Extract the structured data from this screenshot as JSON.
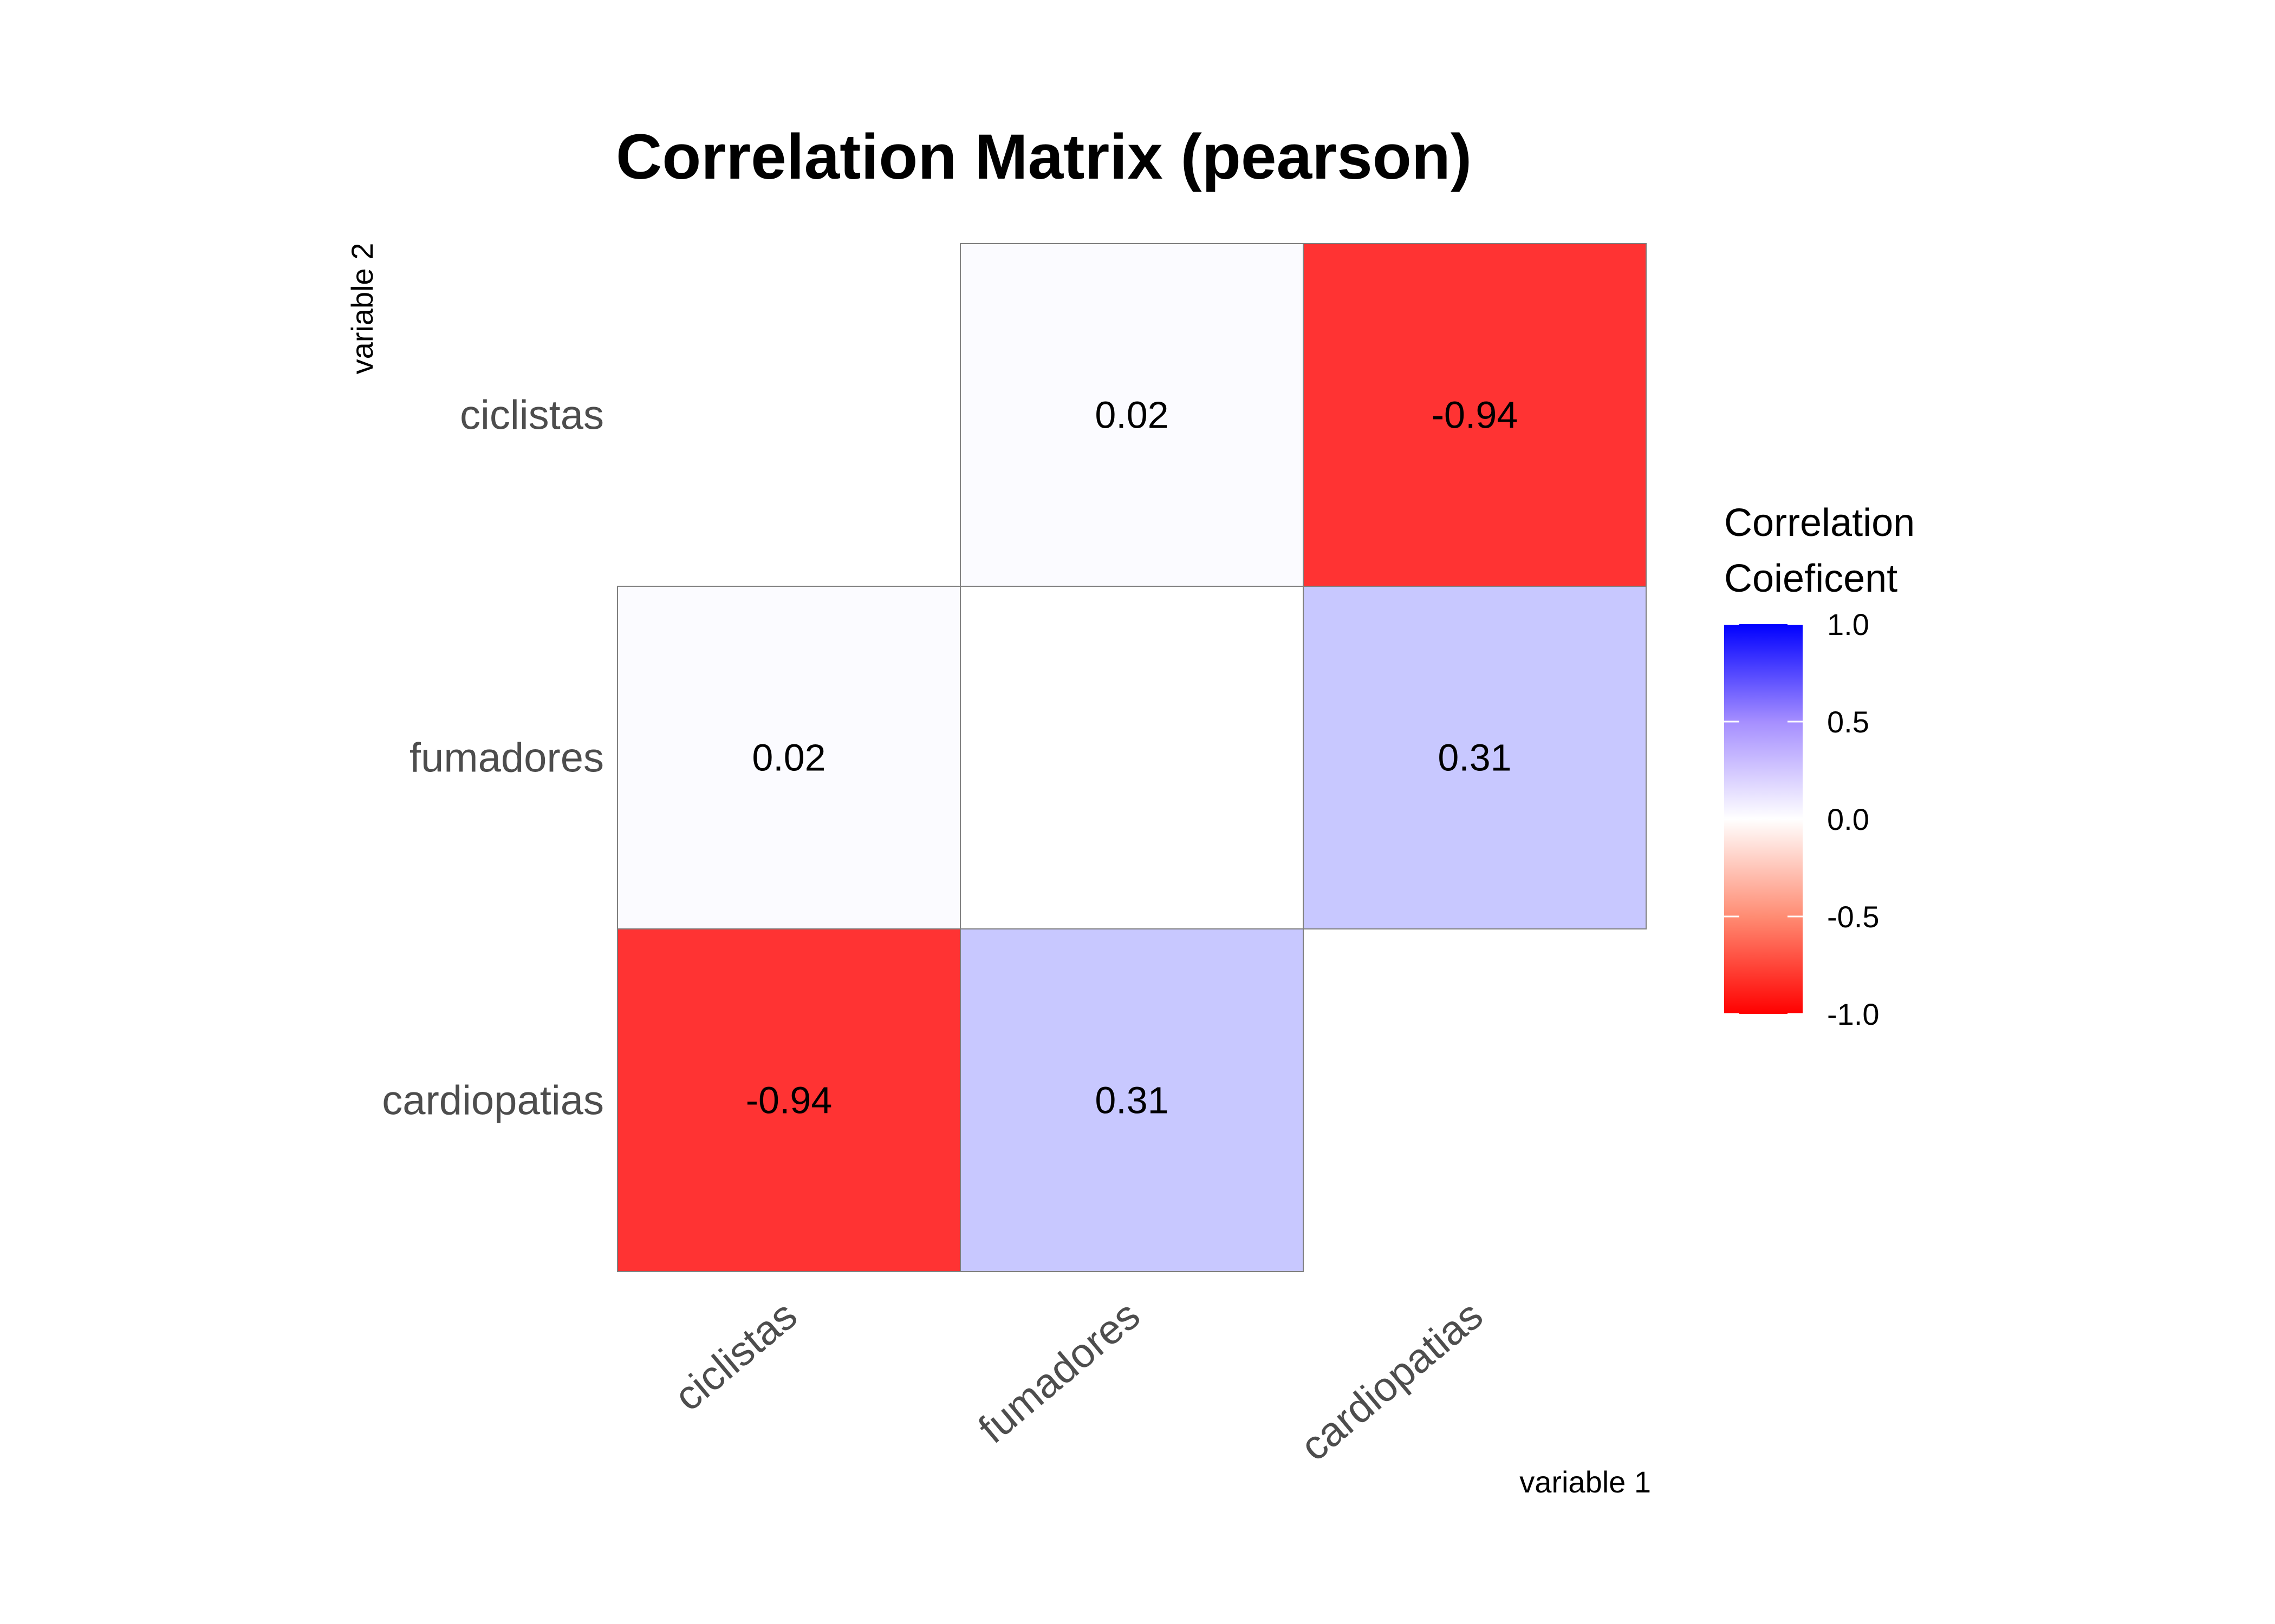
{
  "chart_data": {
    "type": "heatmap",
    "title": "Correlation Matrix (pearson)",
    "xlabel": "variable 1",
    "ylabel": "variable 2",
    "x_categories": [
      "ciclistas",
      "fumadores",
      "cardiopatias"
    ],
    "y_categories": [
      "ciclistas",
      "fumadores",
      "cardiopatias"
    ],
    "cells": [
      {
        "x": "fumadores",
        "y": "ciclistas",
        "value": 0.02,
        "label": "0.02"
      },
      {
        "x": "cardiopatias",
        "y": "ciclistas",
        "value": -0.94,
        "label": "-0.94"
      },
      {
        "x": "ciclistas",
        "y": "fumadores",
        "value": 0.02,
        "label": "0.02"
      },
      {
        "x": "fumadores",
        "y": "fumadores",
        "value": 0,
        "label": ""
      },
      {
        "x": "cardiopatias",
        "y": "fumadores",
        "value": 0.31,
        "label": "0.31"
      },
      {
        "x": "ciclistas",
        "y": "cardiopatias",
        "value": -0.94,
        "label": "-0.94"
      },
      {
        "x": "fumadores",
        "y": "cardiopatias",
        "value": 0.31,
        "label": "0.31"
      }
    ],
    "legend": {
      "title_lines": [
        "Correlation",
        "Coieficent"
      ],
      "ticks": [
        "1.0",
        "0.5",
        "0.0",
        "-0.5",
        "-1.0"
      ],
      "tick_values": [
        1.0,
        0.5,
        0.0,
        -0.5,
        -1.0
      ],
      "range": [
        -1,
        1
      ],
      "colors": {
        "low": "#ff0000",
        "mid": "#ffffff",
        "high": "#0000ff"
      }
    }
  }
}
